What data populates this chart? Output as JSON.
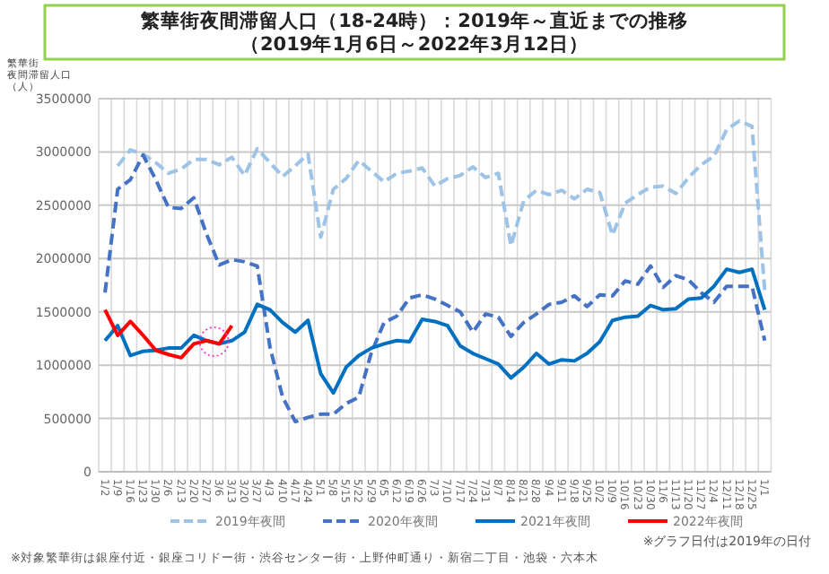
{
  "chart_data": {
    "type": "line",
    "title": "繁華街夜間滞留人口（18-24時）：2019年～直近までの推移",
    "subtitle": "（2019年1月6日～2022年3月12日）",
    "ylabel": "繁華街夜間滞留人口（人）",
    "categories": [
      "1/2",
      "1/9",
      "1/16",
      "1/23",
      "1/30",
      "2/6",
      "2/13",
      "2/20",
      "2/27",
      "3/6",
      "3/13",
      "3/20",
      "3/27",
      "4/3",
      "4/10",
      "4/17",
      "4/24",
      "5/1",
      "5/8",
      "5/15",
      "5/22",
      "5/29",
      "6/5",
      "6/12",
      "6/19",
      "6/26",
      "7/3",
      "7/10",
      "7/17",
      "7/24",
      "7/31",
      "8/7",
      "8/14",
      "8/21",
      "8/28",
      "9/4",
      "9/11",
      "9/18",
      "9/25",
      "10/2",
      "10/9",
      "10/16",
      "10/23",
      "10/30",
      "11/6",
      "11/13",
      "11/20",
      "11/27",
      "12/4",
      "12/11",
      "12/18",
      "12/25",
      "1/1"
    ],
    "series": [
      {
        "name": "2019年夜間",
        "color": "#9dc3e6",
        "line_style": "dashed",
        "values": [
          null,
          2870000,
          3020000,
          2980000,
          2900000,
          2800000,
          2840000,
          2930000,
          2930000,
          2880000,
          2950000,
          2780000,
          3030000,
          2900000,
          2770000,
          2870000,
          2980000,
          2200000,
          2650000,
          2750000,
          2920000,
          2820000,
          2720000,
          2800000,
          2820000,
          2850000,
          2680000,
          2750000,
          2780000,
          2860000,
          2760000,
          2800000,
          2120000,
          2540000,
          2640000,
          2600000,
          2640000,
          2560000,
          2650000,
          2620000,
          2220000,
          2520000,
          2600000,
          2670000,
          2680000,
          2610000,
          2760000,
          2880000,
          2960000,
          3210000,
          3290000,
          3240000,
          1700000
        ]
      },
      {
        "name": "2020年夜間",
        "color": "#4472c4",
        "line_style": "dashed",
        "values": [
          1680000,
          2650000,
          2740000,
          2970000,
          2740000,
          2480000,
          2470000,
          2570000,
          2230000,
          1940000,
          1990000,
          1970000,
          1930000,
          1170000,
          700000,
          470000,
          510000,
          540000,
          540000,
          640000,
          700000,
          1120000,
          1400000,
          1460000,
          1630000,
          1660000,
          1620000,
          1560000,
          1500000,
          1310000,
          1480000,
          1450000,
          1270000,
          1400000,
          1480000,
          1570000,
          1590000,
          1650000,
          1550000,
          1660000,
          1650000,
          1790000,
          1760000,
          1930000,
          1730000,
          1840000,
          1800000,
          1680000,
          1590000,
          1740000,
          1740000,
          1740000,
          1230000
        ]
      },
      {
        "name": "2021年夜間",
        "color": "#0070c0",
        "line_style": "solid",
        "values": [
          1230000,
          1370000,
          1090000,
          1130000,
          1140000,
          1160000,
          1160000,
          1280000,
          1230000,
          1200000,
          1230000,
          1310000,
          1570000,
          1520000,
          1400000,
          1310000,
          1420000,
          920000,
          740000,
          980000,
          1090000,
          1160000,
          1200000,
          1230000,
          1220000,
          1430000,
          1410000,
          1370000,
          1180000,
          1110000,
          1060000,
          1010000,
          880000,
          980000,
          1110000,
          1010000,
          1050000,
          1040000,
          1110000,
          1220000,
          1420000,
          1450000,
          1460000,
          1560000,
          1520000,
          1530000,
          1620000,
          1630000,
          1740000,
          1900000,
          1870000,
          1900000,
          1520000
        ]
      },
      {
        "name": "2022年夜間",
        "color": "#ff0000",
        "line_style": "solid",
        "values": [
          1520000,
          1280000,
          1410000,
          1280000,
          1140000,
          1100000,
          1070000,
          1200000,
          1230000,
          1200000,
          1370000,
          null,
          null,
          null,
          null,
          null,
          null,
          null,
          null,
          null,
          null,
          null,
          null,
          null,
          null,
          null,
          null,
          null,
          null,
          null,
          null,
          null,
          null,
          null,
          null,
          null,
          null,
          null,
          null,
          null,
          null,
          null,
          null,
          null,
          null,
          null,
          null,
          null,
          null,
          null,
          null,
          null,
          null
        ]
      }
    ],
    "ylim": [
      0,
      3500000
    ],
    "yticks": [
      0,
      500000,
      1000000,
      1500000,
      2000000,
      2500000,
      3000000,
      3500000
    ],
    "grid": true,
    "legend": "bottom",
    "annotations": [
      "※対象繁華街は銀座付近・銀座コリドー街・渋谷センター街・上野仲町通り・新宿二丁目・池袋・六本木",
      "※グラフ日付は2019年の日付"
    ]
  }
}
